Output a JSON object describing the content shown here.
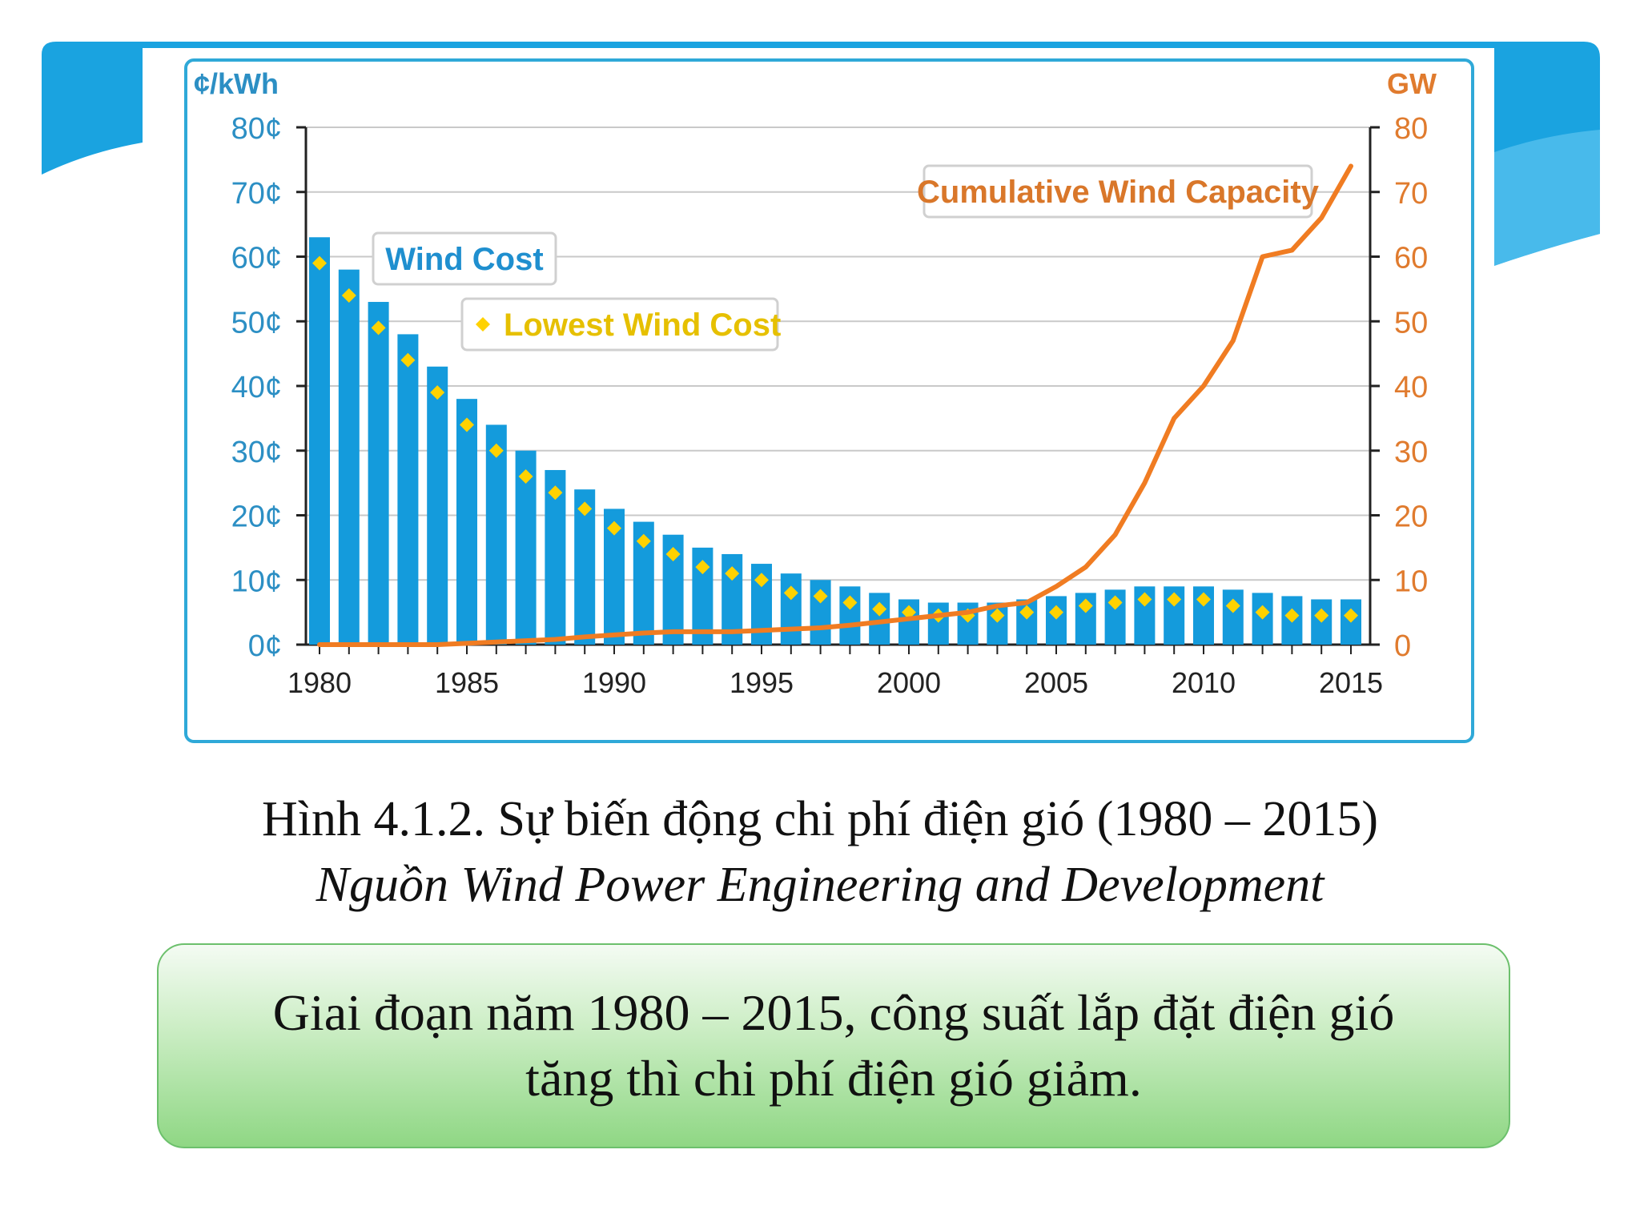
{
  "colors": {
    "accent_blue": "#1aa3e0",
    "bar_blue": "#149bdc",
    "diamond_yellow": "#ffd200",
    "line_orange": "#f07c22",
    "left_axis_text": "#2c8fc4",
    "right_axis_text": "#e07b2e",
    "frame": "#2fa9d8"
  },
  "chart_data": {
    "type": "bar",
    "left_axis": {
      "unit_label": "¢/kWh",
      "ylim": [
        0,
        80
      ],
      "tick_labels": [
        "0¢",
        "10¢",
        "20¢",
        "30¢",
        "40¢",
        "50¢",
        "60¢",
        "70¢",
        "80¢"
      ]
    },
    "right_axis": {
      "unit_label": "GW",
      "ylim": [
        0,
        80
      ],
      "tick_labels": [
        "0",
        "10",
        "20",
        "30",
        "40",
        "50",
        "60",
        "70",
        "80"
      ]
    },
    "x_tick_labels": [
      "1980",
      "1985",
      "1990",
      "1995",
      "2000",
      "2005",
      "2010",
      "2015"
    ],
    "years": [
      1980,
      1981,
      1982,
      1983,
      1984,
      1985,
      1986,
      1987,
      1988,
      1989,
      1990,
      1991,
      1992,
      1993,
      1994,
      1995,
      1996,
      1997,
      1998,
      1999,
      2000,
      2001,
      2002,
      2003,
      2004,
      2005,
      2006,
      2007,
      2008,
      2009,
      2010,
      2011,
      2012,
      2013,
      2014,
      2015
    ],
    "series": [
      {
        "name": "Wind Cost",
        "kind": "bar",
        "axis": "left",
        "values": [
          63,
          58,
          53,
          48,
          43,
          38,
          34,
          30,
          27,
          24,
          21,
          19,
          17,
          15,
          14,
          12.5,
          11,
          10,
          9,
          8,
          7,
          6.5,
          6.5,
          6.5,
          7,
          7.5,
          8,
          8.5,
          9,
          9,
          9,
          8.5,
          8,
          7.5,
          7,
          7
        ]
      },
      {
        "name": "Lowest Wind Cost",
        "kind": "diamond",
        "axis": "left",
        "values": [
          59,
          54,
          49,
          44,
          39,
          34,
          30,
          26,
          23.5,
          21,
          18,
          16,
          14,
          12,
          11,
          10,
          8,
          7.5,
          6.5,
          5.5,
          5,
          4.5,
          4.5,
          4.5,
          5,
          5,
          6,
          6.5,
          7,
          7,
          7,
          6,
          5,
          4.5,
          4.5,
          4.5
        ]
      },
      {
        "name": "Cumulative Wind Capacity",
        "kind": "line",
        "axis": "right",
        "values": [
          0,
          0,
          0,
          0,
          0,
          0.2,
          0.4,
          0.6,
          0.8,
          1.2,
          1.5,
          1.8,
          2,
          2,
          2,
          2.2,
          2.4,
          2.6,
          3,
          3.5,
          4,
          4.5,
          5,
          6,
          6.5,
          9,
          12,
          17,
          25,
          35,
          40,
          47,
          60,
          61,
          66,
          74
        ]
      }
    ],
    "legend_labels": {
      "wind_cost": "Wind Cost",
      "lowest_wind_cost": "Lowest Wind Cost",
      "capacity": "Cumulative Wind Capacity"
    },
    "grid": true
  },
  "caption": {
    "title": "Hình 4.1.2. Sự biến động chi phí điện gió (1980 – 2015)",
    "source": "Nguồn Wind Power Engineering and Development"
  },
  "summary": {
    "text": "Giai đoạn năm 1980 – 2015, công suất lắp đặt điện gió\ntăng thì chi phí điện gió giảm."
  }
}
